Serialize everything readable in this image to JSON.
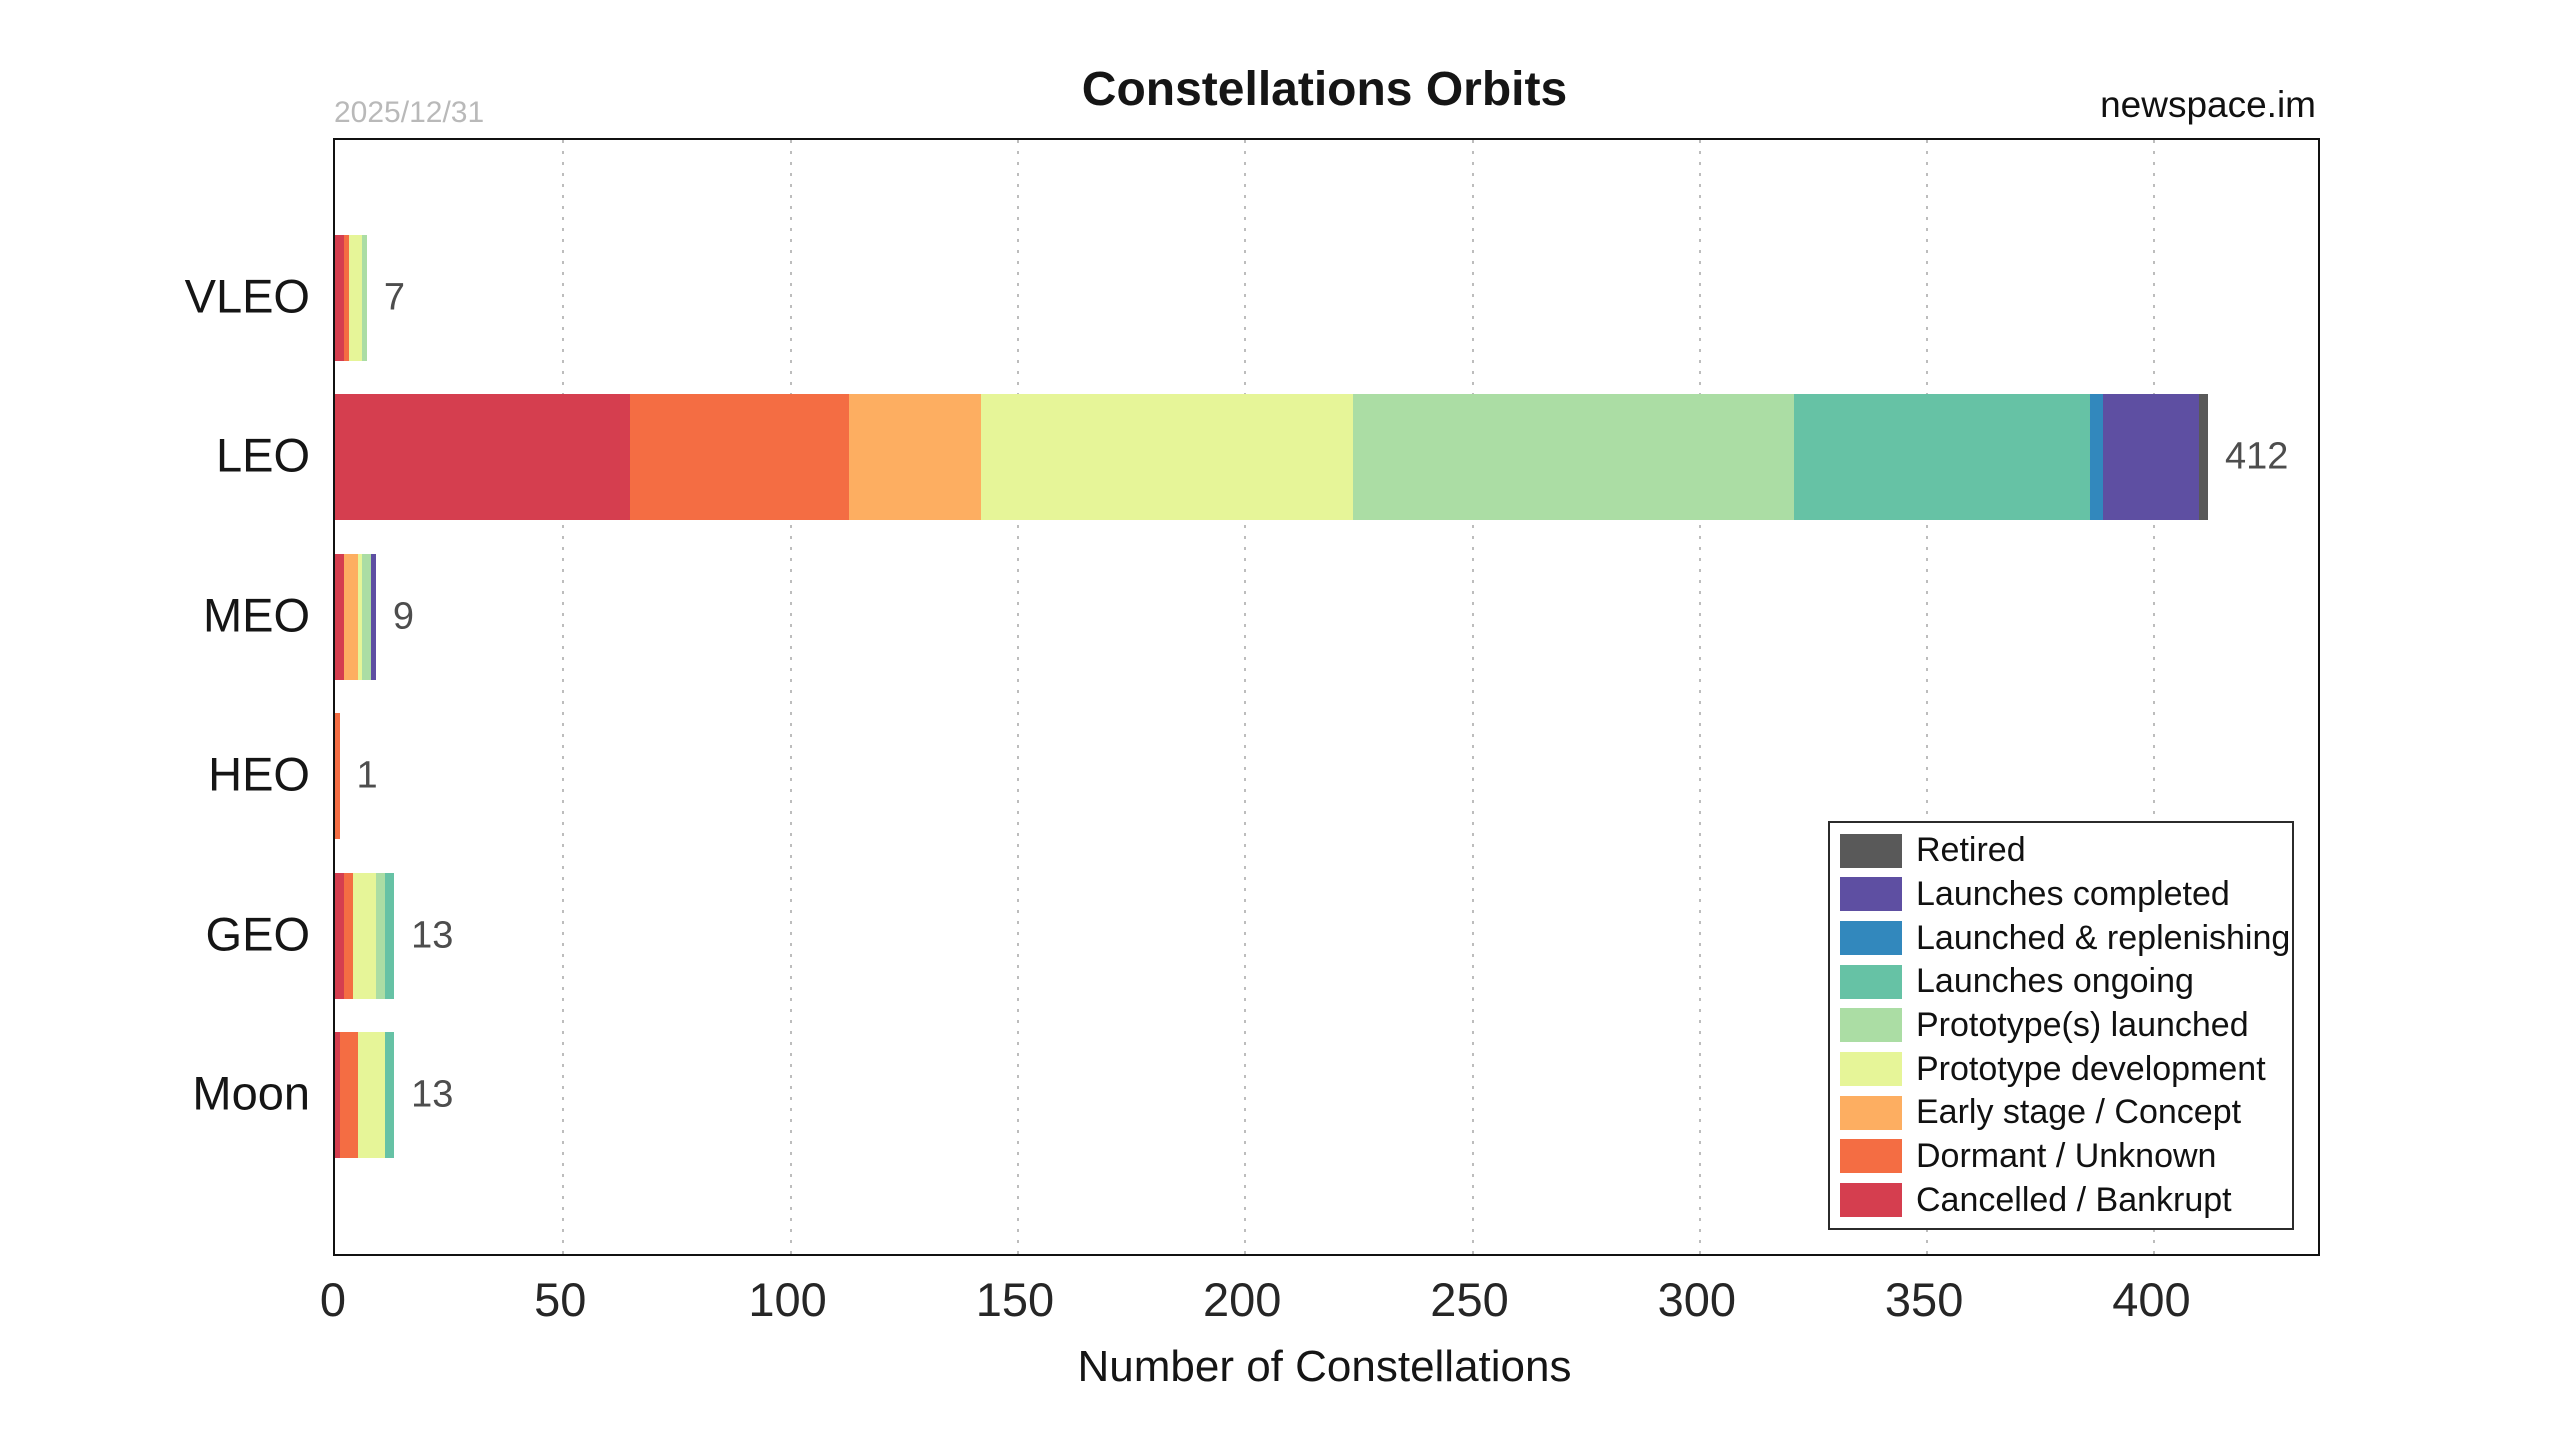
{
  "meta": {
    "date_stamp": "2025/12/31",
    "watermark": "newspace.im"
  },
  "chart_data": {
    "type": "bar",
    "orientation": "horizontal",
    "stacked": true,
    "title": "Constellations Orbits",
    "xlabel": "Number of Constellations",
    "categories": [
      "VLEO",
      "LEO",
      "MEO",
      "HEO",
      "GEO",
      "Moon"
    ],
    "totals": [
      7,
      412,
      9,
      1,
      13,
      13
    ],
    "xlim": [
      0,
      436
    ],
    "xticks": [
      0,
      50,
      100,
      150,
      200,
      250,
      300,
      350,
      400
    ],
    "grid": "vertical dotted gridlines at each x tick",
    "legend_position": "lower right",
    "series": [
      {
        "name": "Cancelled / Bankrupt",
        "color": "#d53e4f",
        "values": [
          2,
          65,
          2,
          0,
          2,
          1
        ]
      },
      {
        "name": "Dormant / Unknown",
        "color": "#f46d43",
        "values": [
          1,
          48,
          0,
          1,
          2,
          4
        ]
      },
      {
        "name": "Early stage / Concept",
        "color": "#fdae61",
        "values": [
          0,
          29,
          3,
          0,
          0,
          0
        ]
      },
      {
        "name": "Prototype development",
        "color": "#e6f598",
        "values": [
          3,
          82,
          1,
          0,
          5,
          6
        ]
      },
      {
        "name": "Prototype(s) launched",
        "color": "#abdda4",
        "values": [
          1,
          97,
          2,
          0,
          2,
          0
        ]
      },
      {
        "name": "Launches ongoing",
        "color": "#66c2a5",
        "values": [
          0,
          65,
          0,
          0,
          2,
          2
        ]
      },
      {
        "name": "Launched & replenishing",
        "color": "#3288bd",
        "values": [
          0,
          3,
          0,
          0,
          0,
          0
        ]
      },
      {
        "name": "Launches completed",
        "color": "#5e4fa2",
        "values": [
          0,
          21,
          1,
          0,
          0,
          0
        ]
      },
      {
        "name": "Retired",
        "color": "#595959",
        "values": [
          0,
          2,
          0,
          0,
          0,
          0
        ]
      }
    ],
    "legend_order_top_to_bottom": [
      "Retired",
      "Launches completed",
      "Launched & replenishing",
      "Launches ongoing",
      "Prototype(s) launched",
      "Prototype development",
      "Early stage / Concept",
      "Dormant / Unknown",
      "Cancelled / Bankrupt"
    ]
  }
}
